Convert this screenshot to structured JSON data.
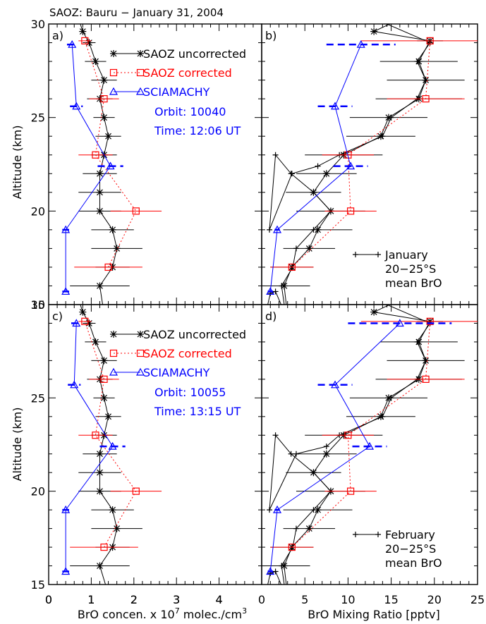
{
  "title": "SAOZ:  Bauru − January 31, 2004",
  "ylabel": "Altitude (km)",
  "colors": {
    "black": "#000000",
    "red": "#ff0000",
    "blue": "#0000ff"
  },
  "chart_data": [
    {
      "panel": "a)",
      "type": "line",
      "position": "top-left",
      "xlim": [
        0,
        5
      ],
      "ylim": [
        15,
        30
      ],
      "xticks": [
        "0",
        "1",
        "2",
        "3",
        "4"
      ],
      "yticks": [
        "15",
        "20",
        "25",
        "30"
      ],
      "legend": [
        "SAOZ uncorrected",
        "SAOZ corrected",
        "SCIAMACHY"
      ],
      "legend_placement": "top-right",
      "annotations": [
        "Orbit: 10040",
        "Time: 12:06 UT"
      ],
      "series": [
        {
          "name": "SAOZ uncorrected",
          "color": "#000000",
          "marker": "asterisk",
          "x": [
            1.3,
            1.2,
            1.5,
            1.6,
            1.5,
            1.2,
            1.2,
            1.2,
            1.3,
            1.4,
            1.3,
            1.2,
            1.3,
            1.1,
            0.95,
            0.8,
            0.7
          ],
          "y": [
            14.5,
            16,
            17,
            18,
            19,
            20,
            21,
            22,
            23,
            24,
            25,
            26,
            27,
            28,
            29,
            29.6,
            30.3
          ],
          "xerr": [
            0,
            0.7,
            0.4,
            0.6,
            0.5,
            0.5,
            0.5,
            0.4,
            0.3,
            0.3,
            0.25,
            0.3,
            0.3,
            0.25,
            0.15,
            0,
            0
          ]
        },
        {
          "name": "SAOZ corrected",
          "color": "#ff0000",
          "marker": "square",
          "x": [
            1.4,
            2.05,
            1.1,
            1.3,
            0.85
          ],
          "y": [
            17,
            20,
            23,
            26,
            29.1
          ],
          "xerr": [
            0.8,
            0.6,
            0.4,
            0.35,
            0.15
          ]
        },
        {
          "name": "SCIAMACHY",
          "color": "#0000ff",
          "marker": "triangle",
          "x": [
            0.4,
            0.4,
            1.45,
            0.65,
            0.55
          ],
          "y": [
            15.7,
            19,
            22.4,
            25.6,
            28.9
          ],
          "bar_halfwidth": [
            0.08,
            0.08,
            0.3,
            0.15,
            0.12
          ]
        }
      ]
    },
    {
      "panel": "b)",
      "type": "line",
      "position": "top-right",
      "xlim": [
        0,
        25
      ],
      "ylim": [
        15,
        30
      ],
      "yticks_labeled": false,
      "legend": [
        "January",
        "20−25°S",
        "mean BrO"
      ],
      "legend_placement": "bottom-right",
      "series": [
        {
          "name": "January 20−25°S mean BrO",
          "color": "#000000",
          "marker": "plus",
          "x": [
            0.6,
            1.0,
            1.6,
            2.8,
            2.3,
            3.6,
            4.0,
            6.0,
            8.0,
            6.0,
            3.4,
            1.6,
            0.9,
            3.5,
            6.5,
            9.0,
            14.0,
            15.0,
            18.0,
            19.0,
            18.0,
            19.5,
            14.5,
            4.0
          ],
          "y": [
            14.8,
            15.6,
            15.7,
            14.4,
            16,
            17,
            18,
            19,
            20,
            21,
            22,
            23,
            19,
            22,
            22.4,
            23,
            24,
            25,
            26,
            27,
            28,
            29,
            30,
            32
          ]
        },
        {
          "name": "SAOZ uncorrected (with error bars)",
          "color": "#000000",
          "marker": "asterisk",
          "x": [
            3,
            2.6,
            3.5,
            5.5,
            6.5,
            8,
            6,
            7.5,
            9.5,
            13.8,
            14.7,
            18.2,
            19,
            18.2,
            19.5,
            13,
            16.2
          ],
          "y": [
            14.4,
            16,
            17,
            18,
            19,
            20,
            21,
            22,
            23,
            24,
            25,
            26,
            27,
            28,
            29.1,
            29.6,
            30.3
          ],
          "xerr": [
            0,
            3,
            2.5,
            3,
            4,
            4,
            3.2,
            3.5,
            4.5,
            4,
            4.5,
            5,
            4.5,
            4.5,
            1.5,
            0,
            0
          ]
        },
        {
          "name": "SAOZ corrected",
          "color": "#ff0000",
          "marker": "square",
          "x": [
            3.5,
            10.3,
            10,
            19,
            19.5
          ],
          "y": [
            17,
            20,
            23,
            26,
            29.1
          ],
          "xerr": [
            2.5,
            3,
            3,
            4.5,
            8
          ]
        },
        {
          "name": "SCIAMACHY",
          "color": "#0000ff",
          "marker": "triangle",
          "x": [
            1,
            1.8,
            10.3,
            8.5,
            11.5
          ],
          "y": [
            15.7,
            19,
            22.4,
            25.6,
            28.9
          ],
          "bar_halfwidth": [
            0.3,
            0.3,
            2,
            2,
            4
          ]
        }
      ]
    },
    {
      "panel": "c)",
      "type": "line",
      "position": "bottom-left",
      "xlim": [
        0,
        5
      ],
      "ylim": [
        15,
        30
      ],
      "xticks": [
        "0",
        "1",
        "2",
        "3",
        "4"
      ],
      "yticks": [
        "15",
        "20",
        "25",
        "30"
      ],
      "xlabel_parts": [
        "BrO concen. x 10",
        "7",
        " molec./cm",
        "3"
      ],
      "legend": [
        "SAOZ uncorrected",
        "SAOZ corrected",
        "SCIAMACHY"
      ],
      "legend_placement": "top-right",
      "annotations": [
        "Orbit: 10055",
        "Time: 13:15 UT"
      ],
      "series": [
        {
          "name": "SAOZ uncorrected",
          "color": "#000000",
          "marker": "asterisk",
          "x": [
            1.4,
            1.2,
            1.5,
            1.6,
            1.5,
            1.2,
            1.2,
            1.2,
            1.3,
            1.4,
            1.3,
            1.2,
            1.3,
            1.1,
            0.95,
            0.8,
            0.7
          ],
          "y": [
            14.5,
            16,
            17,
            18,
            19,
            20,
            21,
            22,
            23,
            24,
            25,
            26,
            27,
            28,
            29,
            29.6,
            30.3
          ],
          "xerr": [
            0,
            0.7,
            0.4,
            0.6,
            0.5,
            0.5,
            0.5,
            0.4,
            0.3,
            0.3,
            0.25,
            0.3,
            0.3,
            0.25,
            0.15,
            0,
            0
          ]
        },
        {
          "name": "SAOZ corrected",
          "color": "#ff0000",
          "marker": "square",
          "x": [
            1.3,
            2.05,
            1.1,
            1.3,
            0.85
          ],
          "y": [
            17,
            20,
            23,
            26,
            29.1
          ],
          "xerr": [
            0.8,
            0.6,
            0.4,
            0.35,
            0.15
          ]
        },
        {
          "name": "SCIAMACHY",
          "color": "#0000ff",
          "marker": "triangle",
          "x": [
            0.4,
            0.4,
            1.5,
            0.6,
            0.65
          ],
          "y": [
            15.7,
            19,
            22.4,
            25.7,
            29.0
          ],
          "bar_halfwidth": [
            0.08,
            0.08,
            0.3,
            0.15,
            0.12
          ]
        }
      ]
    },
    {
      "panel": "d)",
      "type": "line",
      "position": "bottom-right",
      "xlim": [
        0,
        25
      ],
      "ylim": [
        15,
        30
      ],
      "xticks": [
        "0",
        "5",
        "10",
        "15",
        "20",
        "25"
      ],
      "yticks_labeled": false,
      "xlabel": "BrO Mixing Ratio [pptv]",
      "legend": [
        "February",
        "20−25°S",
        "mean BrO"
      ],
      "legend_placement": "bottom-right",
      "series": [
        {
          "name": "February 20−25°S mean BrO",
          "color": "#000000",
          "marker": "plus",
          "x": [
            0.6,
            1.0,
            1.6,
            2.8,
            2.3,
            3.6,
            4.0,
            6.0,
            8.0,
            6.0,
            3.4,
            1.6,
            0.9,
            4.0,
            7.5,
            9.0,
            14.0,
            15.0,
            18.0,
            19.0,
            18.0,
            19.5,
            14.5,
            4.0
          ],
          "y": [
            14.8,
            15.6,
            15.7,
            14.4,
            16,
            17,
            18,
            19,
            20,
            21,
            22,
            23,
            19,
            22,
            22.4,
            23,
            24,
            25,
            26,
            27,
            28,
            29,
            30,
            32
          ]
        },
        {
          "name": "SAOZ uncorrected (with error bars)",
          "color": "#000000",
          "marker": "asterisk",
          "x": [
            3,
            2.6,
            3.5,
            5.5,
            6.5,
            8,
            6,
            7.5,
            9.5,
            13.8,
            14.7,
            18.2,
            19,
            18.2,
            19.5,
            13,
            16.2
          ],
          "y": [
            14.4,
            16,
            17,
            18,
            19,
            20,
            21,
            22,
            23,
            24,
            25,
            26,
            27,
            28,
            29.1,
            29.6,
            30.3
          ],
          "xerr": [
            0,
            3,
            2.5,
            3,
            4,
            4,
            3.2,
            3.5,
            4.5,
            4,
            4.5,
            5,
            4.5,
            4.5,
            1.5,
            0,
            0
          ]
        },
        {
          "name": "SAOZ corrected",
          "color": "#ff0000",
          "marker": "square",
          "x": [
            3.5,
            10.3,
            10,
            19,
            19.5
          ],
          "y": [
            17,
            20,
            23,
            26,
            29.1
          ],
          "xerr": [
            2.5,
            3,
            3,
            4.5,
            8
          ]
        },
        {
          "name": "SCIAMACHY",
          "color": "#0000ff",
          "marker": "triangle",
          "x": [
            1,
            1.8,
            12.5,
            8.5,
            16
          ],
          "y": [
            15.7,
            19,
            22.4,
            25.7,
            29.0
          ],
          "bar_halfwidth": [
            0.3,
            0.3,
            2,
            2,
            6
          ]
        }
      ]
    }
  ]
}
